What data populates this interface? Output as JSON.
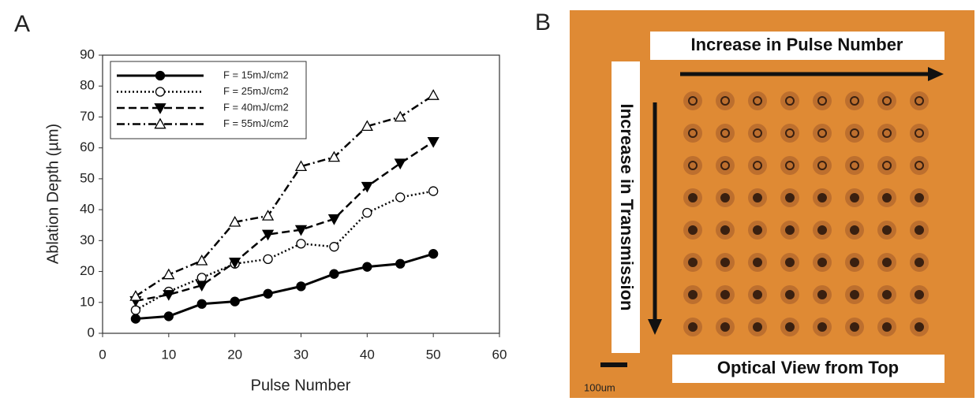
{
  "panel_labels": [
    "A",
    "B"
  ],
  "chart_data": {
    "type": "line",
    "x_label": "Pulse Number",
    "y_label": "Ablation Depth (µm)",
    "x": [
      5,
      10,
      15,
      20,
      25,
      30,
      35,
      40,
      45,
      50
    ],
    "series": [
      {
        "name": "F = 15mJ/cm2",
        "color": "#000000",
        "marker": "circle-filled",
        "line_style": "solid",
        "values": [
          4.7,
          5.5,
          9.5,
          10.3,
          12.8,
          15.2,
          19.2,
          21.5,
          22.5,
          25.7
        ]
      },
      {
        "name": "F = 25mJ/cm2",
        "color": "#000000",
        "marker": "circle-open",
        "line_style": "dotted",
        "values": [
          7.5,
          13.5,
          18,
          22.5,
          24,
          29,
          28,
          39,
          44,
          46
        ]
      },
      {
        "name": "F = 40mJ/cm2",
        "color": "#000000",
        "marker": "triangle-down-filled",
        "line_style": "dashed",
        "values": [
          10.5,
          12.5,
          15.5,
          23,
          32,
          33.5,
          37,
          47.5,
          55,
          62
        ]
      },
      {
        "name": "F = 55mJ/cm2",
        "color": "#000000",
        "marker": "triangle-up-open",
        "line_style": "dashdot",
        "values": [
          12,
          19,
          23.5,
          36,
          38,
          54,
          57,
          67,
          70,
          77
        ]
      }
    ],
    "xlim": [
      0,
      60
    ],
    "xticks": [
      0,
      10,
      20,
      30,
      40,
      50,
      60
    ],
    "ylim": [
      0,
      90
    ],
    "yticks": [
      0,
      10,
      20,
      30,
      40,
      50,
      60,
      70,
      80,
      90
    ],
    "grid": false,
    "legend": "upper left"
  },
  "photo": {
    "top_label": "Increase in Pulse Number",
    "side_label": "Increase in Transmission",
    "bottom_label": "Optical View from Top",
    "scale_label": "100um"
  }
}
